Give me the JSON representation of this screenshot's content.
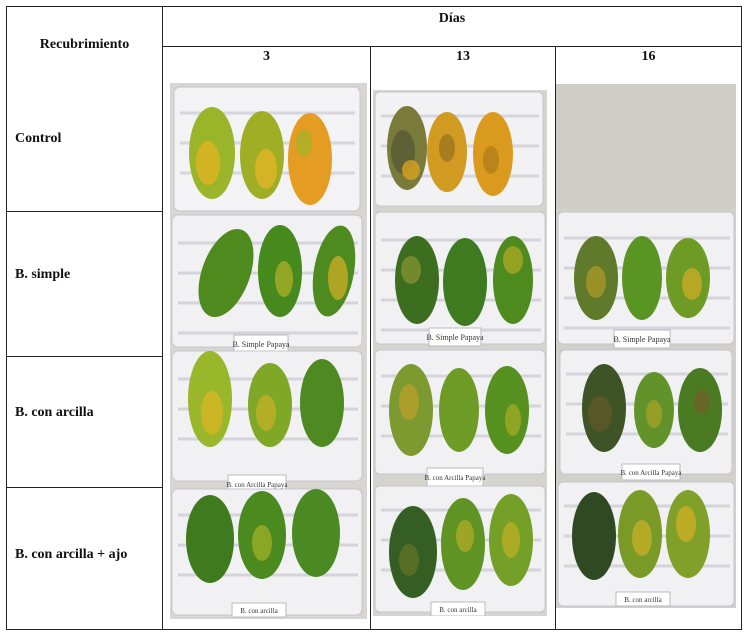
{
  "header": {
    "row_header": "Recubrimiento",
    "group_header": "Días",
    "days": [
      "3",
      "13",
      "16"
    ]
  },
  "rows": [
    {
      "label": "Control"
    },
    {
      "label": "B. simple"
    },
    {
      "label": "B. con arcilla"
    },
    {
      "label": "B. con arcilla + ajo"
    }
  ],
  "tags": {
    "simple": "B. Simple Papaya",
    "arcilla": "B. con Arcilla Papaya",
    "ajo": "B. con arcilla"
  },
  "colors": {
    "crate": "#f2f2f4",
    "crate_shadow": "#c9c9cf",
    "papaya_green": "#3f7a1f",
    "papaya_yellow": "#e0b420",
    "papaya_orange": "#e3901d",
    "papaya_dark": "#3a4a2a"
  }
}
